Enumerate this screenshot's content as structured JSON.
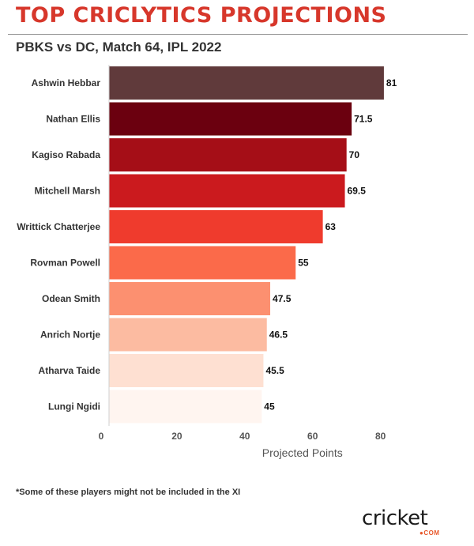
{
  "header": {
    "title": "TOP CRICLYTICS PROJECTIONS",
    "subtitle": "PBKS vs DC, Match 64, IPL 2022"
  },
  "chart_data": {
    "type": "bar",
    "orientation": "horizontal",
    "categories": [
      "Ashwin Hebbar",
      "Nathan Ellis",
      "Kagiso Rabada",
      "Mitchell Marsh",
      "Writtick Chatterjee",
      "Rovman Powell",
      "Odean Smith",
      "Anrich Nortje",
      "Atharva Taide",
      "Lungi Ngidi"
    ],
    "values": [
      81,
      71.5,
      70,
      69.5,
      63,
      55,
      47.5,
      46.5,
      45.5,
      45
    ],
    "value_labels": [
      "81",
      "71.5",
      "70",
      "69.5",
      "63",
      "55",
      "47.5",
      "46.5",
      "45.5",
      "45"
    ],
    "colors": [
      "#603a3b",
      "#6b000f",
      "#a50e17",
      "#cb1a1e",
      "#ef3b2d",
      "#fb6a4a",
      "#fc9070",
      "#fcbba1",
      "#fee0d2",
      "#fff5f0"
    ],
    "title": "",
    "xlabel": "Projected Points",
    "ylabel": "",
    "xlim": [
      0,
      88
    ],
    "xticks": [
      0,
      20,
      40,
      60,
      80
    ],
    "xtick_labels": [
      "0",
      "20",
      "40",
      "60",
      "80"
    ],
    "grid": false,
    "legend": "none"
  },
  "footnote": "*Some of these players might not be included in the XI",
  "logo": {
    "wordmark": "cricket",
    "subtext": "●COM",
    "accent": "#e8572a"
  }
}
